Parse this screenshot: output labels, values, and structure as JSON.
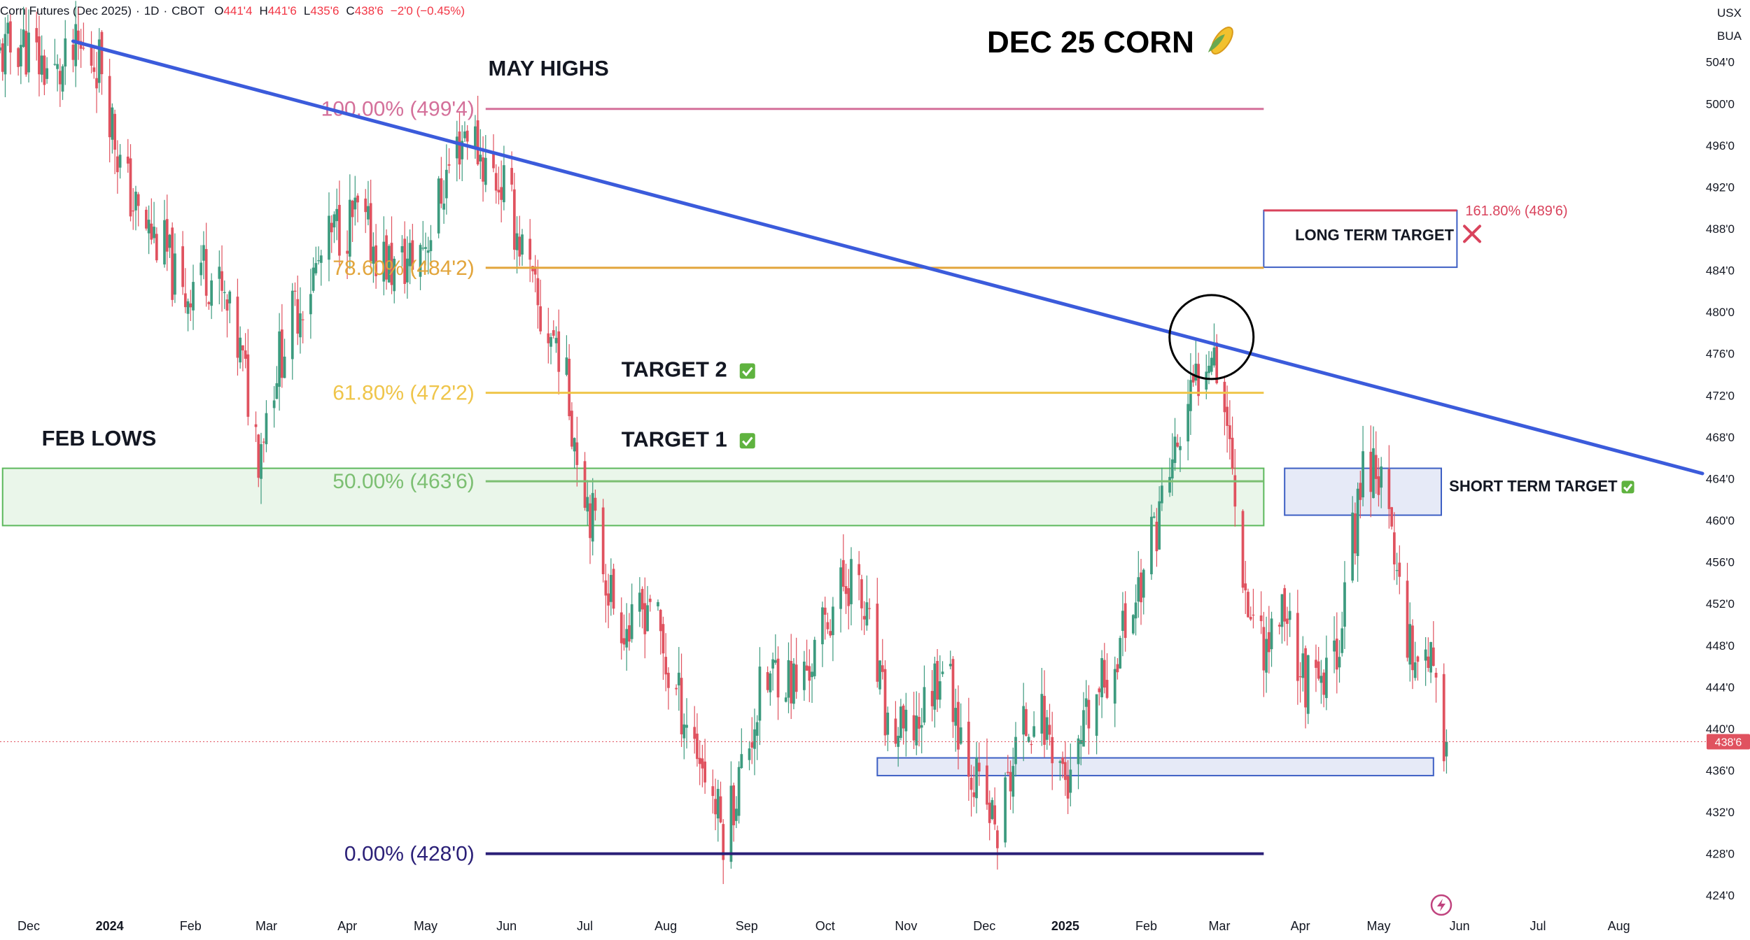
{
  "header": {
    "symbol": "Corn Futures (Dec 2025)",
    "interval": "1D",
    "exchange": "CBOT",
    "o_label": "O",
    "o_value": "441'4",
    "h_label": "H",
    "h_value": "441'6",
    "l_label": "L",
    "l_value": "435'6",
    "c_label": "C",
    "c_value": "438'6",
    "change": "−2'0 (−0.45%)"
  },
  "currency": "USX",
  "unit": "BUA",
  "current_price_label": "438'6",
  "colors": {
    "up": "#3d9b7f",
    "down": "#e0525f",
    "trendline": "#3b5bdb",
    "fib_100": "#d4709a",
    "fib_786": "#e2a53b",
    "fib_618": "#efc54a",
    "fib_50": "#7cbf72",
    "fib_0": "#2a1f77",
    "zone_green": "#5cb85c",
    "zone_blue": "#3d5fc4",
    "target_red": "#d9435c"
  },
  "chart_data": {
    "type": "candlestick",
    "title": "DEC 25 CORN 🌽",
    "ylim": [
      422,
      507
    ],
    "x_range": [
      "2023-11-20",
      "2025-09-02"
    ],
    "x_ticks": [
      {
        "label": "Dec",
        "date": "2023-12-01"
      },
      {
        "label": "2024",
        "date": "2024-01-01",
        "bold": true
      },
      {
        "label": "Feb",
        "date": "2024-02-01"
      },
      {
        "label": "Mar",
        "date": "2024-03-01"
      },
      {
        "label": "Apr",
        "date": "2024-04-01"
      },
      {
        "label": "May",
        "date": "2024-05-01"
      },
      {
        "label": "Jun",
        "date": "2024-06-01"
      },
      {
        "label": "Jul",
        "date": "2024-07-01"
      },
      {
        "label": "Aug",
        "date": "2024-08-01"
      },
      {
        "label": "Sep",
        "date": "2024-09-01"
      },
      {
        "label": "Oct",
        "date": "2024-10-01"
      },
      {
        "label": "Nov",
        "date": "2024-11-01"
      },
      {
        "label": "Dec",
        "date": "2024-12-01"
      },
      {
        "label": "2025",
        "date": "2025-01-01",
        "bold": true
      },
      {
        "label": "Feb",
        "date": "2025-02-01"
      },
      {
        "label": "Mar",
        "date": "2025-03-01"
      },
      {
        "label": "Apr",
        "date": "2025-04-01"
      },
      {
        "label": "May",
        "date": "2025-05-01"
      },
      {
        "label": "Jun",
        "date": "2025-06-01"
      },
      {
        "label": "Jul",
        "date": "2025-07-01"
      },
      {
        "label": "Aug",
        "date": "2025-08-01"
      }
    ],
    "y_ticks": [
      {
        "value": 504,
        "label": "504'0"
      },
      {
        "value": 500,
        "label": "500'0"
      },
      {
        "value": 496,
        "label": "496'0"
      },
      {
        "value": 492,
        "label": "492'0"
      },
      {
        "value": 488,
        "label": "488'0"
      },
      {
        "value": 484,
        "label": "484'0"
      },
      {
        "value": 480,
        "label": "480'0"
      },
      {
        "value": 476,
        "label": "476'0"
      },
      {
        "value": 472,
        "label": "472'0"
      },
      {
        "value": 468,
        "label": "468'0"
      },
      {
        "value": 464,
        "label": "464'0"
      },
      {
        "value": 460,
        "label": "460'0"
      },
      {
        "value": 456,
        "label": "456'0"
      },
      {
        "value": 452,
        "label": "452'0"
      },
      {
        "value": 448,
        "label": "448'0"
      },
      {
        "value": 444,
        "label": "444'0"
      },
      {
        "value": 440,
        "label": "440'0"
      },
      {
        "value": 436,
        "label": "436'0"
      },
      {
        "value": 432,
        "label": "432'0"
      },
      {
        "value": 428,
        "label": "428'0"
      },
      {
        "value": 424,
        "label": "424'0"
      }
    ],
    "current_price": 438.75,
    "price_path": [
      {
        "date": "2023-11-20",
        "price": 504.5
      },
      {
        "date": "2023-11-28",
        "price": 506
      },
      {
        "date": "2023-12-05",
        "price": 504
      },
      {
        "date": "2023-12-12",
        "price": 502.5
      },
      {
        "date": "2023-12-20",
        "price": 505
      },
      {
        "date": "2023-12-29",
        "price": 504
      },
      {
        "date": "2024-01-05",
        "price": 494
      },
      {
        "date": "2024-01-12",
        "price": 489
      },
      {
        "date": "2024-01-22",
        "price": 486
      },
      {
        "date": "2024-01-29",
        "price": 481
      },
      {
        "date": "2024-02-05",
        "price": 485
      },
      {
        "date": "2024-02-12",
        "price": 482
      },
      {
        "date": "2024-02-20",
        "price": 476
      },
      {
        "date": "2024-02-27",
        "price": 467
      },
      {
        "date": "2024-03-05",
        "price": 475
      },
      {
        "date": "2024-03-12",
        "price": 480
      },
      {
        "date": "2024-03-20",
        "price": 484
      },
      {
        "date": "2024-03-28",
        "price": 488
      },
      {
        "date": "2024-04-05",
        "price": 489
      },
      {
        "date": "2024-04-12",
        "price": 486
      },
      {
        "date": "2024-04-19",
        "price": 484
      },
      {
        "date": "2024-04-26",
        "price": 485
      },
      {
        "date": "2024-05-03",
        "price": 488
      },
      {
        "date": "2024-05-10",
        "price": 494
      },
      {
        "date": "2024-05-17",
        "price": 498
      },
      {
        "date": "2024-05-24",
        "price": 494
      },
      {
        "date": "2024-05-31",
        "price": 492
      },
      {
        "date": "2024-06-07",
        "price": 486
      },
      {
        "date": "2024-06-14",
        "price": 479
      },
      {
        "date": "2024-06-21",
        "price": 477
      },
      {
        "date": "2024-06-28",
        "price": 467
      },
      {
        "date": "2024-07-05",
        "price": 459
      },
      {
        "date": "2024-07-12",
        "price": 452
      },
      {
        "date": "2024-07-19",
        "price": 449
      },
      {
        "date": "2024-07-26",
        "price": 453
      },
      {
        "date": "2024-08-02",
        "price": 445
      },
      {
        "date": "2024-08-09",
        "price": 441
      },
      {
        "date": "2024-08-16",
        "price": 436
      },
      {
        "date": "2024-08-23",
        "price": 430
      },
      {
        "date": "2024-08-30",
        "price": 436
      },
      {
        "date": "2024-09-06",
        "price": 443
      },
      {
        "date": "2024-09-13",
        "price": 446
      },
      {
        "date": "2024-09-20",
        "price": 444
      },
      {
        "date": "2024-09-27",
        "price": 447
      },
      {
        "date": "2024-10-04",
        "price": 452
      },
      {
        "date": "2024-10-11",
        "price": 455
      },
      {
        "date": "2024-10-18",
        "price": 449
      },
      {
        "date": "2024-10-25",
        "price": 440
      },
      {
        "date": "2024-11-01",
        "price": 439
      },
      {
        "date": "2024-11-08",
        "price": 442
      },
      {
        "date": "2024-11-15",
        "price": 447
      },
      {
        "date": "2024-11-22",
        "price": 440
      },
      {
        "date": "2024-11-29",
        "price": 434
      },
      {
        "date": "2024-12-06",
        "price": 430
      },
      {
        "date": "2024-12-13",
        "price": 438
      },
      {
        "date": "2024-12-20",
        "price": 442
      },
      {
        "date": "2024-12-27",
        "price": 439
      },
      {
        "date": "2025-01-03",
        "price": 434
      },
      {
        "date": "2025-01-10",
        "price": 441
      },
      {
        "date": "2025-01-17",
        "price": 445
      },
      {
        "date": "2025-01-24",
        "price": 450
      },
      {
        "date": "2025-01-31",
        "price": 455
      },
      {
        "date": "2025-02-07",
        "price": 462
      },
      {
        "date": "2025-02-14",
        "price": 468
      },
      {
        "date": "2025-02-21",
        "price": 474
      },
      {
        "date": "2025-02-26",
        "price": 478
      },
      {
        "date": "2025-03-04",
        "price": 470
      },
      {
        "date": "2025-03-07",
        "price": 462
      },
      {
        "date": "2025-03-12",
        "price": 452
      },
      {
        "date": "2025-03-19",
        "price": 448
      },
      {
        "date": "2025-03-26",
        "price": 452
      },
      {
        "date": "2025-04-02",
        "price": 445
      },
      {
        "date": "2025-04-09",
        "price": 443
      },
      {
        "date": "2025-04-15",
        "price": 448
      },
      {
        "date": "2025-04-21",
        "price": 458
      },
      {
        "date": "2025-04-25",
        "price": 465
      },
      {
        "date": "2025-04-30",
        "price": 466
      },
      {
        "date": "2025-05-05",
        "price": 459
      },
      {
        "date": "2025-05-09",
        "price": 454
      },
      {
        "date": "2025-05-14",
        "price": 447
      },
      {
        "date": "2025-05-20",
        "price": 448
      },
      {
        "date": "2025-05-23",
        "price": 442
      },
      {
        "date": "2025-05-27",
        "price": 438.75
      }
    ],
    "trendline": {
      "start": {
        "date": "2023-12-18",
        "price": 506
      },
      "end": {
        "date": "2025-09-02",
        "price": 464.5
      }
    },
    "fib_levels": [
      {
        "key": "fib_100",
        "label": "100.00% (499'4)",
        "price": 499.5,
        "color_key": "fib_100"
      },
      {
        "key": "fib_786",
        "label": "78.60% (484'2)",
        "price": 484.25,
        "color_key": "fib_786"
      },
      {
        "key": "fib_618",
        "label": "61.80% (472'2)",
        "price": 472.25,
        "color_key": "fib_618"
      },
      {
        "key": "fib_50",
        "label": "50.00% (463'6)",
        "price": 463.75,
        "color_key": "fib_50"
      },
      {
        "key": "fib_0",
        "label": "0.00% (428'0)",
        "price": 428.0,
        "color_key": "fib_0"
      }
    ],
    "fib_line_dates": [
      "2024-05-24",
      "2025-03-18"
    ],
    "zones": [
      {
        "key": "feb-lows-zone",
        "from": "2023-11-21",
        "to": "2025-03-18",
        "top": 465,
        "bottom": 459.5,
        "color_key": "zone_green"
      },
      {
        "key": "short-term-target-zone",
        "from": "2025-03-26",
        "to": "2025-05-25",
        "top": 465,
        "bottom": 460.5,
        "color_key": "zone_blue"
      },
      {
        "key": "support-zone",
        "from": "2024-10-21",
        "to": "2025-05-22",
        "top": 437.2,
        "bottom": 435.5,
        "color_key": "zone_blue"
      },
      {
        "key": "long-term-target-zone",
        "from": "2025-03-18",
        "to": "2025-05-31",
        "top": 489.75,
        "bottom": 484.3,
        "color_key": "zone_blue"
      }
    ],
    "long_term_target_level": {
      "label": "161.80% (489'6)",
      "price": 489.75
    },
    "annotations": [
      {
        "key": "may-highs",
        "text": "MAY HIGHS",
        "date": "2024-05-25",
        "price": 502.7
      },
      {
        "key": "feb-lows",
        "text": "FEB LOWS",
        "date": "2023-12-06",
        "price": 467.2
      },
      {
        "key": "target-2",
        "text": "TARGET 2",
        "date": "2024-07-15",
        "price": 473.8,
        "check": true
      },
      {
        "key": "target-1",
        "text": "TARGET 1",
        "date": "2024-07-15",
        "price": 467.1,
        "check": true
      },
      {
        "key": "long-term-target",
        "text": "LONG TERM TARGET",
        "date": "2025-03-30",
        "price": 486.9,
        "cross": true
      },
      {
        "key": "short-term-target",
        "text": "SHORT TERM TARGET",
        "date": "2025-05-28",
        "price": 462.8,
        "check": true
      }
    ],
    "circle_marker": {
      "date": "2025-02-26",
      "price": 477.6
    }
  }
}
